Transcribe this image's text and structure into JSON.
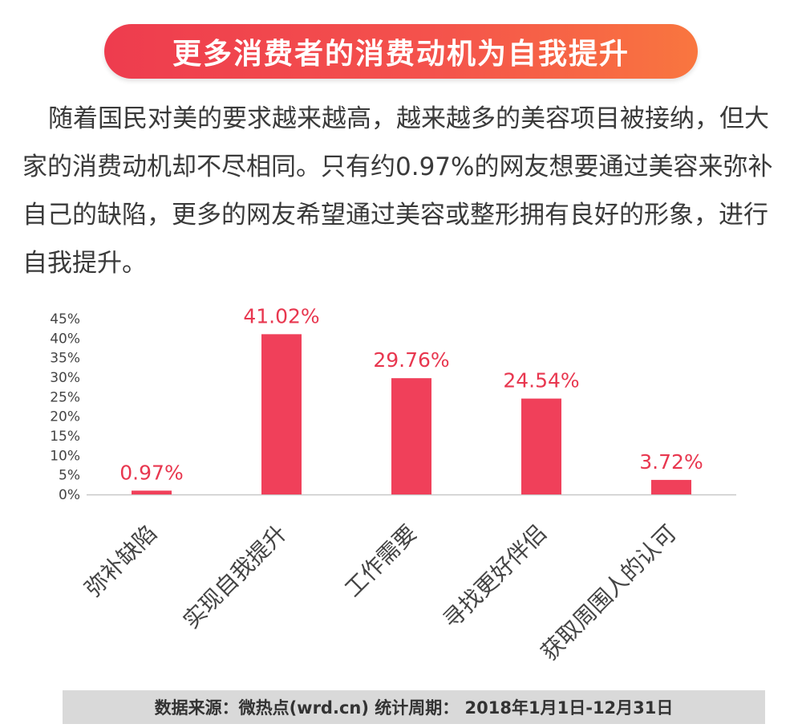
{
  "header": {
    "title": "更多消费者的消费动机为自我提升"
  },
  "body": {
    "paragraph": "随着国民对美的要求越来越高，越来越多的美容项目被接纳，但大家的消费动机却不尽相同。只有约0.97%的网友想要通过美容来弥补自己的缺陷，更多的网友希望通过美容或整形拥有良好的形象，进行自我提升。"
  },
  "chart_data": {
    "type": "bar",
    "categories": [
      "弥补缺陷",
      "实现自我提升",
      "工作需要",
      "寻找更好伴侣",
      "获取周围人的认可"
    ],
    "values": [
      0.97,
      41.02,
      29.76,
      24.54,
      3.72
    ],
    "value_labels": [
      "0.97%",
      "41.02%",
      "29.76%",
      "24.54%",
      "3.72%"
    ],
    "y_ticks": [
      "0%",
      "5%",
      "10%",
      "15%",
      "20%",
      "25%",
      "30%",
      "35%",
      "40%",
      "45%"
    ],
    "ylim": [
      0,
      45
    ],
    "bar_color": "#f0405a",
    "label_color": "#e8374f",
    "grid": false
  },
  "footer": {
    "source": "数据来源：微热点(wrd.cn)  统计周期：  2018年1月1日-12月31日"
  }
}
